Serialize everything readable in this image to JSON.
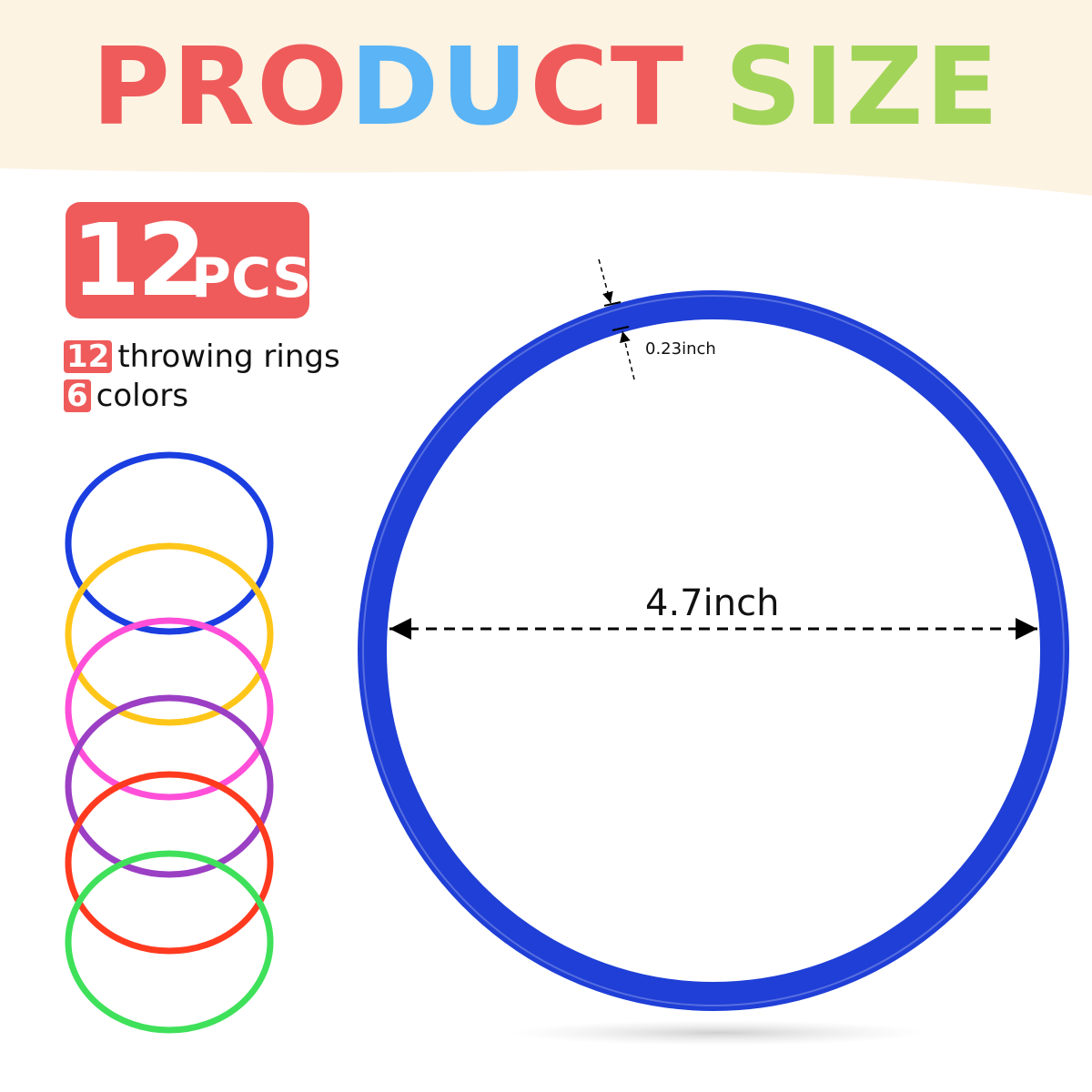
{
  "title": {
    "parts": [
      {
        "text": "PRO",
        "color": "#ef5b5b"
      },
      {
        "text": "DU",
        "color": "#5ab4f5"
      },
      {
        "text": "CT",
        "color": "#ef5b5b"
      },
      {
        "text": " SIZE",
        "color": "#a3d45a"
      }
    ]
  },
  "badge": {
    "count": "12",
    "unit": "PCS",
    "color": "#ef5b5b"
  },
  "features": [
    {
      "num": "12",
      "text": "throwing rings"
    },
    {
      "num": "6",
      "text": "colors"
    }
  ],
  "dimensions": {
    "diameter": "4.7inch",
    "thickness": "0.23inch"
  },
  "main_ring_color": "#1f3fd6",
  "ring_colors": [
    "#1a3ee0",
    "#ffc61a",
    "#ff4fd8",
    "#9b3fc4",
    "#ff3a1f",
    "#3fe05a"
  ]
}
